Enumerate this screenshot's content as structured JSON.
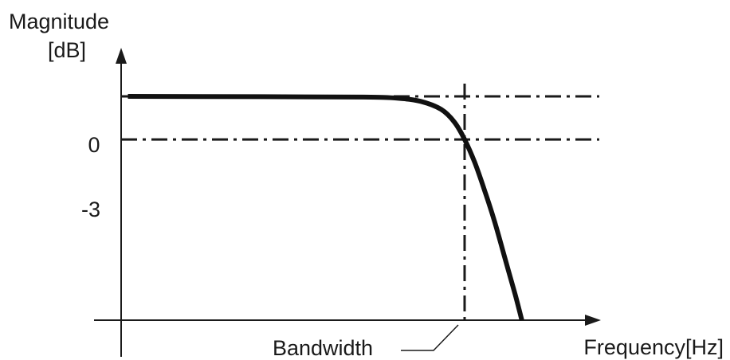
{
  "chart_data": {
    "type": "line",
    "title": "",
    "ylabel_line1": "Magnitude",
    "ylabel_line2": "[dB]",
    "xlabel": "Frequency[Hz]",
    "y_ticks": [
      "0",
      "-3"
    ],
    "reference_lines": [
      {
        "axis": "y",
        "value": 0,
        "style": "dash-dot"
      },
      {
        "axis": "y",
        "value": -3,
        "style": "dash-dot"
      },
      {
        "axis": "x",
        "value": 1.0,
        "style": "dash-dot"
      }
    ],
    "annotation": {
      "text": "Bandwidth",
      "points_to_x": 1.0
    },
    "series": [
      {
        "x": [
          0,
          0.4,
          0.7,
          0.8,
          0.87,
          0.93,
          0.97,
          1.0,
          1.03,
          1.06,
          1.09,
          1.12,
          1.15,
          1.17
        ],
        "y": [
          0,
          -0.02,
          -0.05,
          -0.12,
          -0.35,
          -0.9,
          -1.8,
          -3.0,
          -4.6,
          -6.6,
          -8.8,
          -11.3,
          -13.8,
          -15.6
        ]
      }
    ],
    "xlim": [
      -0.02,
      1.4
    ],
    "ylim": [
      -15.6,
      3
    ]
  }
}
